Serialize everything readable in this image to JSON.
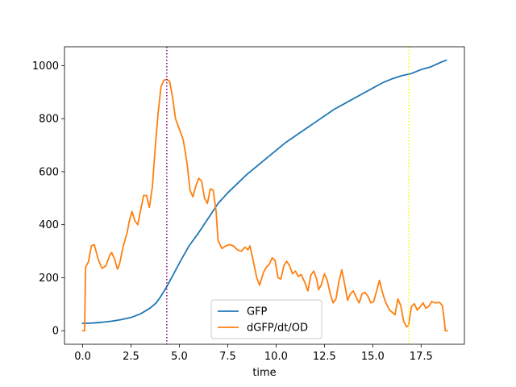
{
  "chart_data": {
    "type": "line",
    "title": "",
    "xlabel": "time",
    "ylabel": "",
    "xlim": [
      -0.94,
      19.74
    ],
    "ylim": [
      -51,
      1071
    ],
    "xticks": [
      0.0,
      2.5,
      5.0,
      7.5,
      10.0,
      12.5,
      15.0,
      17.5
    ],
    "xtick_labels": [
      "0.0",
      "2.5",
      "5.0",
      "7.5",
      "10.0",
      "12.5",
      "15.0",
      "17.5"
    ],
    "yticks": [
      0,
      200,
      400,
      600,
      800,
      1000
    ],
    "ytick_labels": [
      "0",
      "200",
      "400",
      "600",
      "800",
      "1000"
    ],
    "grid": false,
    "legend": {
      "placement": "lower-center"
    },
    "vlines": [
      {
        "x": 4.35,
        "color": "#800080",
        "style": "dotted"
      },
      {
        "x": 16.85,
        "color": "#ffff00",
        "style": "dotted"
      }
    ],
    "series": [
      {
        "name": "GFP",
        "color": "#1f77b4",
        "points": [
          [
            0.0,
            28
          ],
          [
            0.5,
            29
          ],
          [
            1.0,
            32
          ],
          [
            1.5,
            36
          ],
          [
            2.0,
            42
          ],
          [
            2.5,
            50
          ],
          [
            3.0,
            64
          ],
          [
            3.5,
            86
          ],
          [
            3.8,
            105
          ],
          [
            4.0,
            125
          ],
          [
            4.3,
            160
          ],
          [
            4.6,
            200
          ],
          [
            5.0,
            255
          ],
          [
            5.5,
            320
          ],
          [
            6.0,
            370
          ],
          [
            6.5,
            425
          ],
          [
            7.0,
            480
          ],
          [
            7.5,
            520
          ],
          [
            8.0,
            555
          ],
          [
            8.5,
            590
          ],
          [
            9.0,
            620
          ],
          [
            9.5,
            650
          ],
          [
            10.0,
            680
          ],
          [
            10.5,
            710
          ],
          [
            11.0,
            735
          ],
          [
            11.5,
            760
          ],
          [
            12.0,
            785
          ],
          [
            12.5,
            810
          ],
          [
            13.0,
            835
          ],
          [
            13.5,
            855
          ],
          [
            14.0,
            875
          ],
          [
            14.5,
            895
          ],
          [
            15.0,
            915
          ],
          [
            15.5,
            935
          ],
          [
            16.0,
            950
          ],
          [
            16.5,
            962
          ],
          [
            17.0,
            970
          ],
          [
            17.5,
            985
          ],
          [
            18.0,
            995
          ],
          [
            18.5,
            1012
          ],
          [
            18.8,
            1020
          ]
        ]
      },
      {
        "name": "dGFP/dt/OD",
        "color": "#ff7f0e",
        "points": [
          [
            0.0,
            0
          ],
          [
            0.1,
            0
          ],
          [
            0.15,
            240
          ],
          [
            0.3,
            260
          ],
          [
            0.45,
            320
          ],
          [
            0.6,
            325
          ],
          [
            0.8,
            270
          ],
          [
            1.0,
            235
          ],
          [
            1.2,
            245
          ],
          [
            1.4,
            285
          ],
          [
            1.5,
            295
          ],
          [
            1.65,
            270
          ],
          [
            1.8,
            232
          ],
          [
            1.9,
            250
          ],
          [
            2.1,
            320
          ],
          [
            2.3,
            370
          ],
          [
            2.4,
            410
          ],
          [
            2.55,
            450
          ],
          [
            2.7,
            415
          ],
          [
            2.85,
            400
          ],
          [
            3.0,
            455
          ],
          [
            3.15,
            510
          ],
          [
            3.3,
            510
          ],
          [
            3.45,
            465
          ],
          [
            3.6,
            540
          ],
          [
            3.75,
            690
          ],
          [
            3.9,
            820
          ],
          [
            4.05,
            920
          ],
          [
            4.2,
            945
          ],
          [
            4.35,
            948
          ],
          [
            4.5,
            940
          ],
          [
            4.65,
            880
          ],
          [
            4.8,
            800
          ],
          [
            5.0,
            760
          ],
          [
            5.2,
            720
          ],
          [
            5.4,
            630
          ],
          [
            5.55,
            530
          ],
          [
            5.7,
            505
          ],
          [
            5.85,
            545
          ],
          [
            6.0,
            575
          ],
          [
            6.15,
            565
          ],
          [
            6.3,
            500
          ],
          [
            6.45,
            480
          ],
          [
            6.6,
            535
          ],
          [
            6.75,
            530
          ],
          [
            6.9,
            450
          ],
          [
            7.0,
            340
          ],
          [
            7.2,
            310
          ],
          [
            7.4,
            320
          ],
          [
            7.6,
            325
          ],
          [
            7.8,
            320
          ],
          [
            8.0,
            305
          ],
          [
            8.2,
            300
          ],
          [
            8.4,
            315
          ],
          [
            8.55,
            305
          ],
          [
            8.65,
            320
          ],
          [
            8.8,
            270
          ],
          [
            9.0,
            200
          ],
          [
            9.15,
            172
          ],
          [
            9.35,
            220
          ],
          [
            9.5,
            240
          ],
          [
            9.65,
            250
          ],
          [
            9.8,
            275
          ],
          [
            9.95,
            265
          ],
          [
            10.1,
            200
          ],
          [
            10.25,
            195
          ],
          [
            10.4,
            245
          ],
          [
            10.55,
            262
          ],
          [
            10.7,
            245
          ],
          [
            10.85,
            215
          ],
          [
            11.0,
            225
          ],
          [
            11.15,
            205
          ],
          [
            11.3,
            212
          ],
          [
            11.5,
            180
          ],
          [
            11.65,
            150
          ],
          [
            11.8,
            210
          ],
          [
            11.95,
            225
          ],
          [
            12.1,
            195
          ],
          [
            12.2,
            155
          ],
          [
            12.35,
            175
          ],
          [
            12.5,
            215
          ],
          [
            12.65,
            190
          ],
          [
            12.8,
            140
          ],
          [
            12.95,
            105
          ],
          [
            13.1,
            120
          ],
          [
            13.25,
            185
          ],
          [
            13.4,
            230
          ],
          [
            13.55,
            175
          ],
          [
            13.7,
            115
          ],
          [
            13.85,
            140
          ],
          [
            14.0,
            150
          ],
          [
            14.15,
            125
          ],
          [
            14.3,
            105
          ],
          [
            14.45,
            140
          ],
          [
            14.6,
            145
          ],
          [
            14.75,
            130
          ],
          [
            14.9,
            105
          ],
          [
            15.05,
            110
          ],
          [
            15.2,
            150
          ],
          [
            15.35,
            190
          ],
          [
            15.5,
            145
          ],
          [
            15.65,
            110
          ],
          [
            15.85,
            80
          ],
          [
            16.0,
            70
          ],
          [
            16.15,
            60
          ],
          [
            16.3,
            120
          ],
          [
            16.45,
            95
          ],
          [
            16.6,
            35
          ],
          [
            16.75,
            15
          ],
          [
            16.85,
            20
          ],
          [
            17.0,
            90
          ],
          [
            17.15,
            102
          ],
          [
            17.3,
            78
          ],
          [
            17.45,
            90
          ],
          [
            17.6,
            105
          ],
          [
            17.75,
            85
          ],
          [
            17.9,
            92
          ],
          [
            18.05,
            110
          ],
          [
            18.25,
            105
          ],
          [
            18.45,
            107
          ],
          [
            18.6,
            95
          ],
          [
            18.7,
            40
          ],
          [
            18.75,
            0
          ],
          [
            18.85,
            0
          ]
        ]
      }
    ]
  }
}
